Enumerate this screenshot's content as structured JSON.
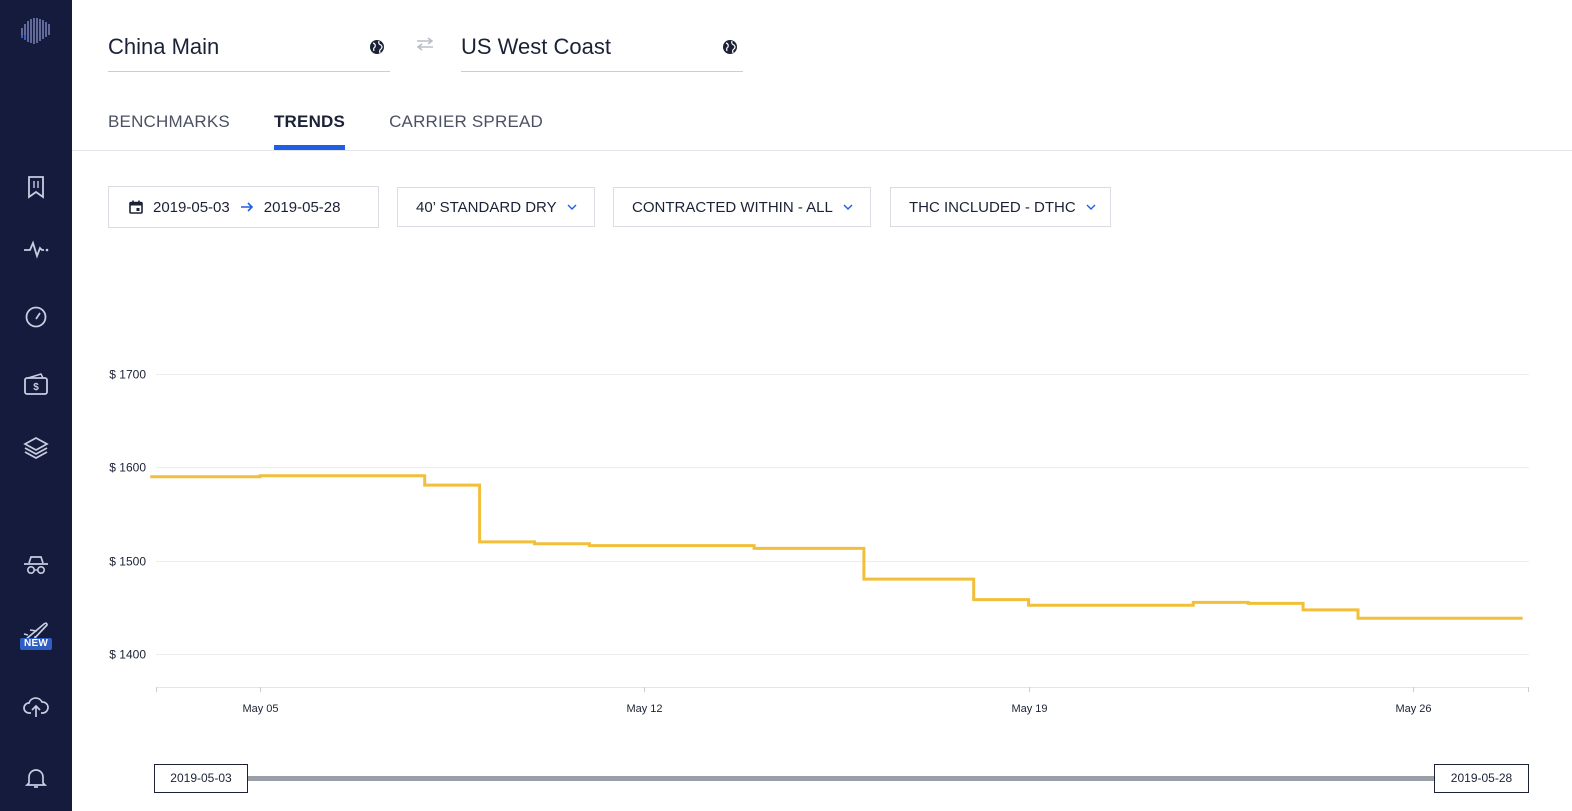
{
  "sidebar": {
    "items": [
      {
        "icon": "bookmark-icon"
      },
      {
        "icon": "activity-icon"
      },
      {
        "icon": "speedometer-icon"
      },
      {
        "icon": "wallet-icon"
      },
      {
        "icon": "layers-icon"
      },
      {
        "icon": "incognito-icon"
      },
      {
        "icon": "airplane-icon",
        "badge": "NEW"
      },
      {
        "icon": "cloud-upload-icon"
      },
      {
        "icon": "bell-icon"
      }
    ]
  },
  "route": {
    "origin": "China Main",
    "destination": "US West Coast"
  },
  "tabs": [
    {
      "label": "BENCHMARKS",
      "active": false
    },
    {
      "label": "TRENDS",
      "active": true
    },
    {
      "label": "CARRIER SPREAD",
      "active": false
    }
  ],
  "filters": {
    "date_from": "2019-05-03",
    "date_to": "2019-05-28",
    "container": "40’ STANDARD DRY",
    "contracted": "CONTRACTED WITHIN - ALL",
    "thc": "THC INCLUDED - DTHC"
  },
  "range_slider": {
    "start": "2019-05-03",
    "end": "2019-05-28"
  },
  "colors": {
    "sidebar": "#141b3d",
    "accent": "#1f5fe6",
    "line": "#f2bf3a"
  },
  "chart_data": {
    "type": "line",
    "step": true,
    "y_ticks": [
      1400,
      1500,
      1600,
      1700
    ],
    "y_tick_labels": [
      "$ 1400",
      "$ 1500",
      "$ 1600",
      "$ 1700"
    ],
    "ylim": [
      1365,
      1733
    ],
    "x_ticks": [
      "May 05",
      "May 12",
      "May 19",
      "May 26"
    ],
    "x_tick_dates": [
      "2019-05-05",
      "2019-05-12",
      "2019-05-19",
      "2019-05-26"
    ],
    "xlim": [
      "2019-05-03",
      "2019-05-28"
    ],
    "grid": true,
    "series": [
      {
        "x": [
          "2019-05-03",
          "2019-05-05",
          "2019-05-07",
          "2019-05-08",
          "2019-05-09",
          "2019-05-10",
          "2019-05-11",
          "2019-05-14",
          "2019-05-16",
          "2019-05-18",
          "2019-05-19",
          "2019-05-22",
          "2019-05-23",
          "2019-05-24",
          "2019-05-25",
          "2019-05-28"
        ],
        "y": [
          1590,
          1591,
          1591,
          1581,
          1520,
          1518,
          1516,
          1513,
          1480,
          1458,
          1452,
          1455,
          1454,
          1447,
          1438,
          1438
        ]
      }
    ]
  }
}
